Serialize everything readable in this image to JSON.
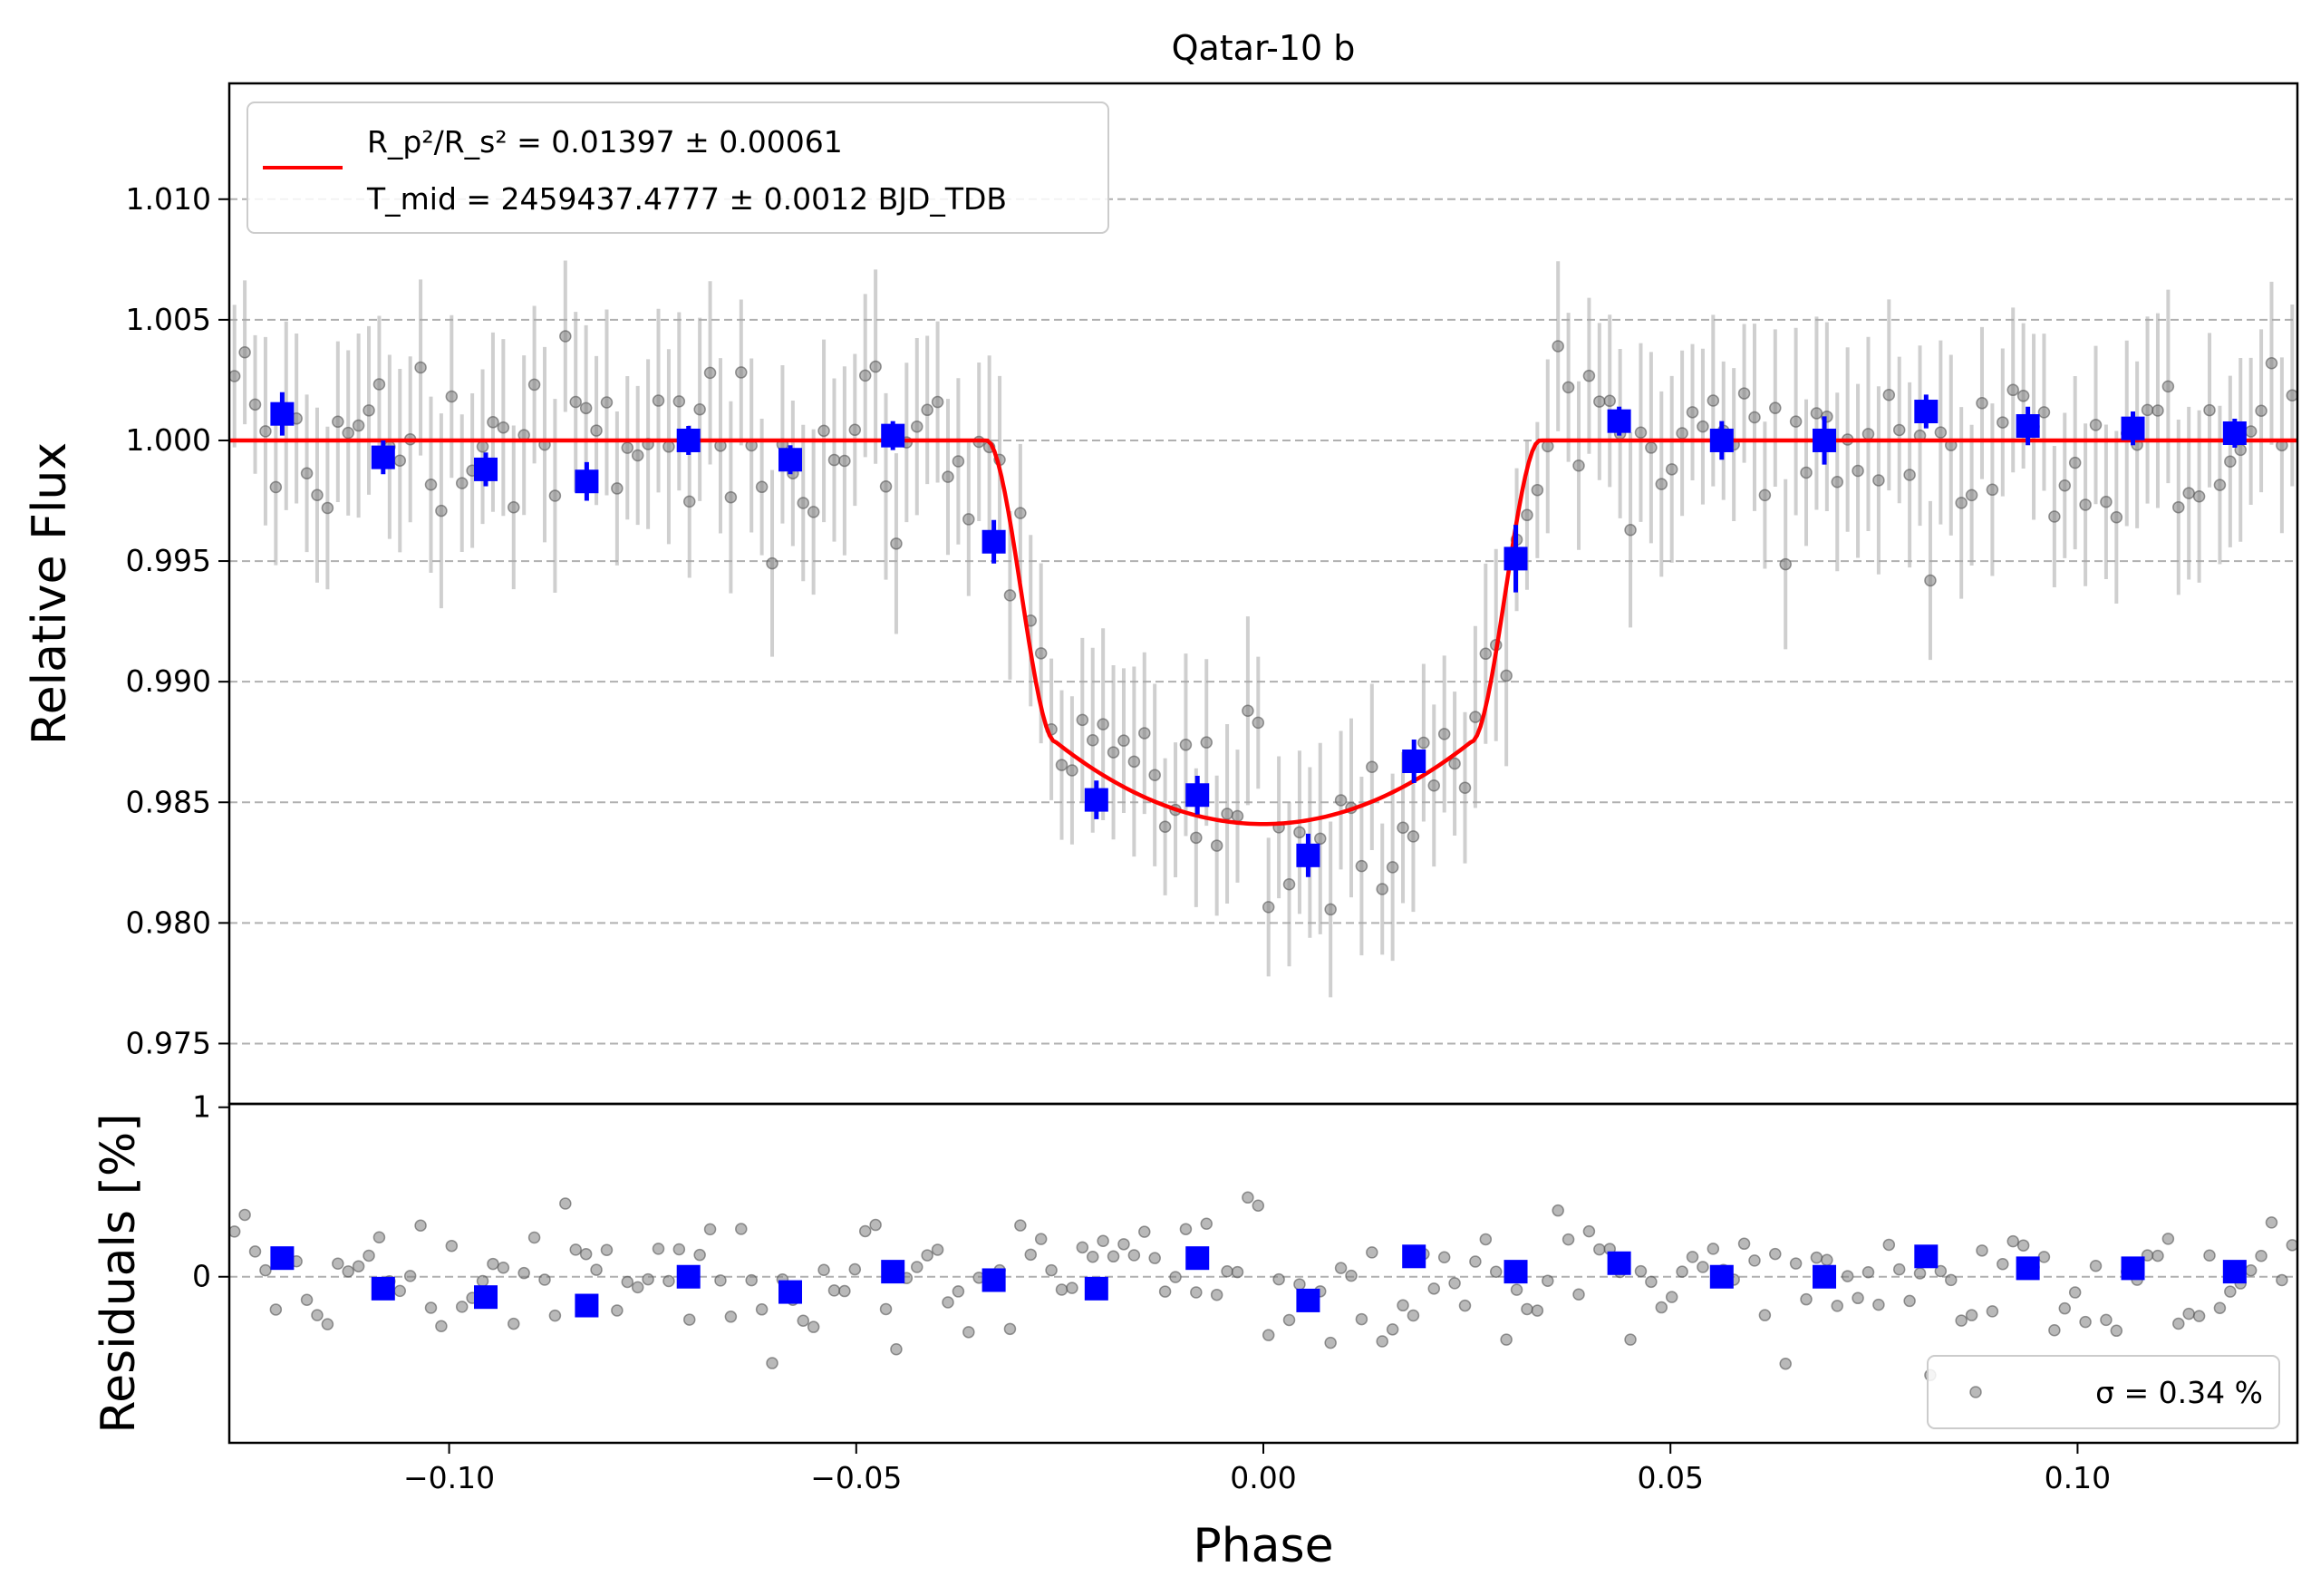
{
  "chart_data": {
    "type": "scatter",
    "title": "Qatar-10 b",
    "top_panel": {
      "ylabel": "Relative Flux",
      "xlim": [
        -0.127,
        0.127
      ],
      "ylim": [
        0.9725,
        1.0148
      ],
      "yticks": [
        0.975,
        0.98,
        0.985,
        0.99,
        0.995,
        1.0,
        1.005,
        1.01
      ],
      "ytick_labels": [
        "0.975",
        "0.980",
        "0.985",
        "0.990",
        "0.995",
        "1.000",
        "1.005",
        "1.010"
      ],
      "grid": "horizontal dashed",
      "legend": {
        "placement": "upper-left",
        "line1": "R_p²/R_s² = 0.01397 ± 0.00061",
        "line2": "T_mid = 2459437.4777 ± 0.0012 BJD_TDB"
      },
      "model": {
        "name": "transit model",
        "color": "#ff0000",
        "depth": 0.01397,
        "t14_half_width": 0.034,
        "t23_half_width": 0.0255,
        "bottom_flux": 0.9841,
        "contact_flux": 0.9875
      },
      "binned": {
        "color": "#0000ff",
        "x": [
          -0.1205,
          -0.1081,
          -0.0955,
          -0.0831,
          -0.0706,
          -0.0581,
          -0.0455,
          -0.0331,
          -0.0205,
          -0.0081,
          0.0055,
          0.0185,
          0.031,
          0.0437,
          0.0563,
          0.0689,
          0.0814,
          0.0939,
          0.1068,
          0.1193
        ],
        "y": [
          1.0011,
          0.9993,
          0.9988,
          0.9983,
          1.0,
          0.9992,
          1.0002,
          0.9958,
          0.9851,
          0.9853,
          0.9828,
          0.9867,
          0.9951,
          1.0008,
          1.0,
          1.0,
          1.0012,
          1.0006,
          1.0005,
          1.0003
        ],
        "yerr": [
          0.0009,
          0.0007,
          0.0007,
          0.0008,
          0.0006,
          0.0006,
          0.0006,
          0.0009,
          0.0008,
          0.0008,
          0.0009,
          0.0009,
          0.0014,
          0.0006,
          0.0008,
          0.001,
          0.0007,
          0.0008,
          0.0007,
          0.0006
        ]
      },
      "raw": {
        "color": "#808080",
        "note_count": 200,
        "typical_yerr": 0.0034
      }
    },
    "bottom_panel": {
      "ylabel": "Residuals [%]",
      "xlabel": "Phase",
      "ylim": [
        -0.98,
        1.02
      ],
      "yticks": [
        0,
        1
      ],
      "ytick_labels": [
        "0",
        "1"
      ],
      "xticks": [
        -0.1,
        -0.05,
        0.0,
        0.05,
        0.1
      ],
      "xtick_labels": [
        "−0.10",
        "−0.05",
        "0.00",
        "0.05",
        "0.10"
      ],
      "legend": {
        "placement": "lower-right",
        "label": "σ = 0.34 %"
      },
      "binned_residuals": [
        0.11,
        -0.07,
        -0.12,
        -0.17,
        0.0,
        -0.09,
        0.03,
        -0.02,
        -0.07,
        0.11,
        -0.14,
        0.12,
        0.03,
        0.08,
        0.0,
        0.0,
        0.12,
        0.05,
        0.05,
        0.03
      ]
    }
  }
}
